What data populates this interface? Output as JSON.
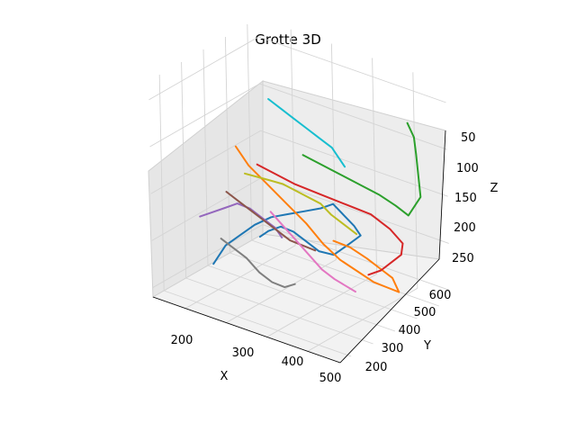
{
  "chart_data": {
    "type": "line3d",
    "title": "Grotte 3D",
    "xlabel": "X",
    "ylabel": "Y",
    "zlabel": "Z",
    "xticks": [
      "200",
      "300",
      "400",
      "500"
    ],
    "yticks": [
      "200",
      "300",
      "400",
      "500",
      "600"
    ],
    "zticks": [
      "50",
      "100",
      "150",
      "200",
      "250"
    ],
    "xlim": [
      120,
      580
    ],
    "ylim": [
      150,
      650
    ],
    "zlim": [
      260,
      30
    ],
    "z_axis_inverted": true,
    "grid": true,
    "legend": "none",
    "series_colors": [
      "#1f77b4",
      "#ff7f0e",
      "#2ca02c",
      "#d62728",
      "#9467bd",
      "#8c564b",
      "#e377c2",
      "#7f7f7f",
      "#bcbd22",
      "#17becf"
    ],
    "series": [
      {
        "color": "#1f77b4",
        "points": [
          [
            200,
            280,
            230
          ],
          [
            220,
            300,
            210
          ],
          [
            240,
            330,
            200
          ],
          [
            260,
            360,
            190
          ],
          [
            290,
            380,
            180
          ],
          [
            320,
            400,
            175
          ],
          [
            350,
            420,
            170
          ],
          [
            380,
            440,
            165
          ],
          [
            400,
            460,
            160
          ],
          [
            420,
            470,
            170
          ],
          [
            440,
            480,
            180
          ],
          [
            450,
            490,
            190
          ],
          [
            430,
            470,
            200
          ],
          [
            410,
            440,
            210
          ],
          [
            390,
            410,
            205
          ],
          [
            370,
            390,
            195
          ],
          [
            350,
            370,
            185
          ],
          [
            330,
            350,
            180
          ],
          [
            310,
            330,
            185
          ],
          [
            300,
            310,
            190
          ]
        ]
      },
      {
        "color": "#ff7f0e",
        "points": [
          [
            250,
            300,
            100
          ],
          [
            270,
            320,
            120
          ],
          [
            300,
            350,
            140
          ],
          [
            330,
            380,
            160
          ],
          [
            360,
            410,
            180
          ],
          [
            390,
            430,
            200
          ],
          [
            420,
            450,
            215
          ],
          [
            450,
            470,
            225
          ],
          [
            480,
            490,
            235
          ],
          [
            500,
            510,
            240
          ],
          [
            520,
            530,
            245
          ],
          [
            510,
            520,
            230
          ],
          [
            490,
            500,
            220
          ],
          [
            470,
            480,
            210
          ],
          [
            440,
            460,
            200
          ],
          [
            410,
            440,
            195
          ]
        ]
      },
      {
        "color": "#2ca02c",
        "points": [
          [
            350,
            420,
            110
          ],
          [
            380,
            450,
            120
          ],
          [
            410,
            480,
            130
          ],
          [
            440,
            510,
            140
          ],
          [
            470,
            540,
            150
          ],
          [
            500,
            560,
            160
          ],
          [
            520,
            580,
            170
          ],
          [
            540,
            600,
            150
          ],
          [
            530,
            610,
            130
          ],
          [
            520,
            620,
            110
          ],
          [
            510,
            630,
            95
          ],
          [
            500,
            620,
            80
          ]
        ]
      },
      {
        "color": "#d62728",
        "points": [
          [
            280,
            340,
            120
          ],
          [
            310,
            370,
            130
          ],
          [
            340,
            400,
            140
          ],
          [
            380,
            440,
            150
          ],
          [
            420,
            480,
            160
          ],
          [
            460,
            520,
            170
          ],
          [
            490,
            550,
            185
          ],
          [
            510,
            570,
            200
          ],
          [
            500,
            580,
            215
          ],
          [
            480,
            570,
            225
          ],
          [
            460,
            560,
            235
          ],
          [
            440,
            540,
            240
          ]
        ]
      },
      {
        "color": "#9467bd",
        "points": [
          [
            180,
            260,
            180
          ],
          [
            200,
            280,
            175
          ],
          [
            220,
            300,
            170
          ],
          [
            240,
            320,
            165
          ],
          [
            260,
            340,
            170
          ],
          [
            280,
            360,
            180
          ],
          [
            300,
            380,
            190
          ],
          [
            310,
            390,
            200
          ]
        ]
      },
      {
        "color": "#8c564b",
        "points": [
          [
            230,
            290,
            150
          ],
          [
            250,
            310,
            160
          ],
          [
            270,
            330,
            170
          ],
          [
            290,
            350,
            180
          ],
          [
            310,
            370,
            190
          ],
          [
            330,
            390,
            200
          ],
          [
            350,
            410,
            205
          ],
          [
            370,
            430,
            210
          ]
        ]
      },
      {
        "color": "#e377c2",
        "points": [
          [
            300,
            360,
            170
          ],
          [
            320,
            380,
            185
          ],
          [
            340,
            400,
            200
          ],
          [
            360,
            420,
            215
          ],
          [
            380,
            440,
            230
          ],
          [
            400,
            460,
            240
          ],
          [
            420,
            470,
            245
          ],
          [
            440,
            480,
            250
          ]
        ]
      },
      {
        "color": "#7f7f7f",
        "points": [
          [
            220,
            280,
            200
          ],
          [
            240,
            300,
            210
          ],
          [
            260,
            320,
            220
          ],
          [
            280,
            340,
            235
          ],
          [
            300,
            360,
            245
          ],
          [
            320,
            380,
            250
          ],
          [
            340,
            390,
            245
          ]
        ]
      },
      {
        "color": "#bcbd22",
        "points": [
          [
            260,
            320,
            130
          ],
          [
            290,
            350,
            135
          ],
          [
            320,
            380,
            140
          ],
          [
            350,
            410,
            150
          ],
          [
            380,
            440,
            160
          ],
          [
            400,
            450,
            170
          ],
          [
            420,
            470,
            180
          ],
          [
            440,
            490,
            190
          ]
        ]
      },
      {
        "color": "#17becf",
        "points": [
          [
            300,
            360,
            50
          ],
          [
            320,
            380,
            60
          ],
          [
            340,
            400,
            70
          ],
          [
            360,
            420,
            80
          ],
          [
            380,
            440,
            90
          ],
          [
            400,
            460,
            100
          ],
          [
            410,
            470,
            110
          ],
          [
            420,
            480,
            120
          ]
        ]
      }
    ]
  }
}
